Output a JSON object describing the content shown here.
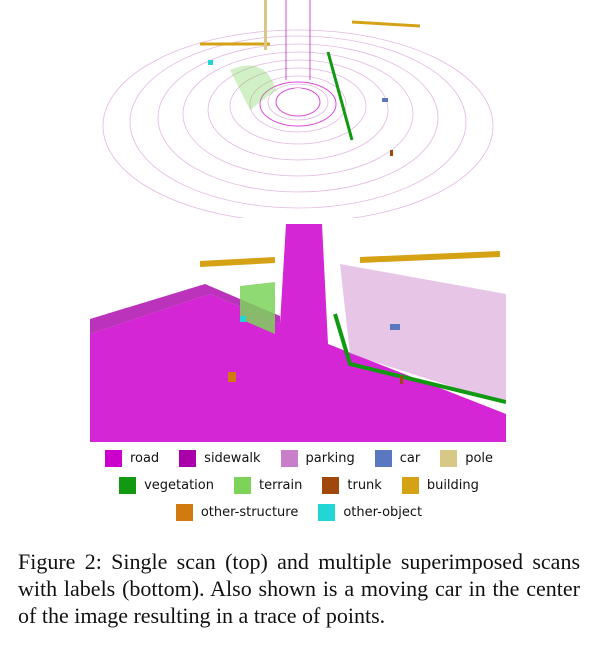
{
  "legend": [
    [
      {
        "label": "road",
        "color": "#cc00cc"
      },
      {
        "label": "sidewalk",
        "color": "#aa00aa"
      },
      {
        "label": "parking",
        "color": "#c97ec9"
      },
      {
        "label": "car",
        "color": "#5a78c0"
      },
      {
        "label": "pole",
        "color": "#d8c888"
      }
    ],
    [
      {
        "label": "vegetation",
        "color": "#119911"
      },
      {
        "label": "terrain",
        "color": "#7dd35a"
      },
      {
        "label": "trunk",
        "color": "#a0480c"
      },
      {
        "label": "building",
        "color": "#d4a214"
      }
    ],
    [
      {
        "label": "other-structure",
        "color": "#d07a10"
      },
      {
        "label": "other-object",
        "color": "#22d6d6"
      }
    ]
  ],
  "caption": "Figure 2:  Single scan (top) and multiple superimposed scans with labels (bottom).  Also shown is a moving car in the center of the image resulting in a trace of points."
}
